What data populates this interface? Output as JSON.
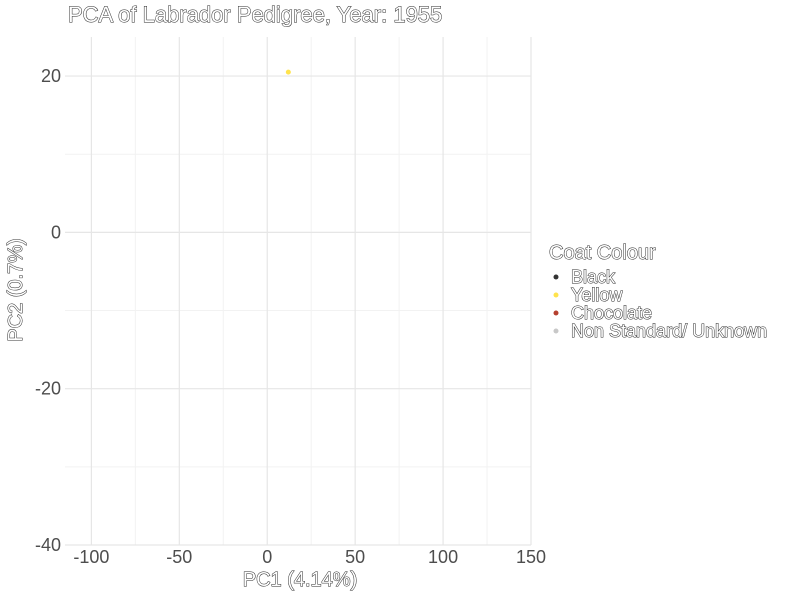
{
  "chart_data": {
    "type": "scatter",
    "title": "PCA of Labrador Pedigree, Year: 1955",
    "xlabel": "PC1 (4.14%)",
    "ylabel": "PC2 (0.7%)",
    "xlim": [
      -115,
      150
    ],
    "ylim": [
      -40,
      25
    ],
    "x_ticks": [
      -100,
      -50,
      0,
      50,
      100,
      150
    ],
    "y_ticks": [
      -40,
      -20,
      0,
      20
    ],
    "grid": true,
    "legend": {
      "title": "Coat Colour",
      "placement": "right",
      "entries": [
        {
          "label": "Black",
          "color": "#333333"
        },
        {
          "label": "Yellow",
          "color": "#ffe34d"
        },
        {
          "label": "Chocolate",
          "color": "#b5402f"
        },
        {
          "label": "Non Standard/ Unknown",
          "color": "#c8c8c8"
        }
      ]
    },
    "series": [
      {
        "name": "Black",
        "color": "#333333",
        "points": []
      },
      {
        "name": "Yellow",
        "color": "#ffe34d",
        "points": [
          {
            "x": 12,
            "y": 20.5
          }
        ]
      },
      {
        "name": "Chocolate",
        "color": "#b5402f",
        "points": []
      },
      {
        "name": "Non Standard/ Unknown",
        "color": "#c8c8c8",
        "points": []
      }
    ]
  }
}
